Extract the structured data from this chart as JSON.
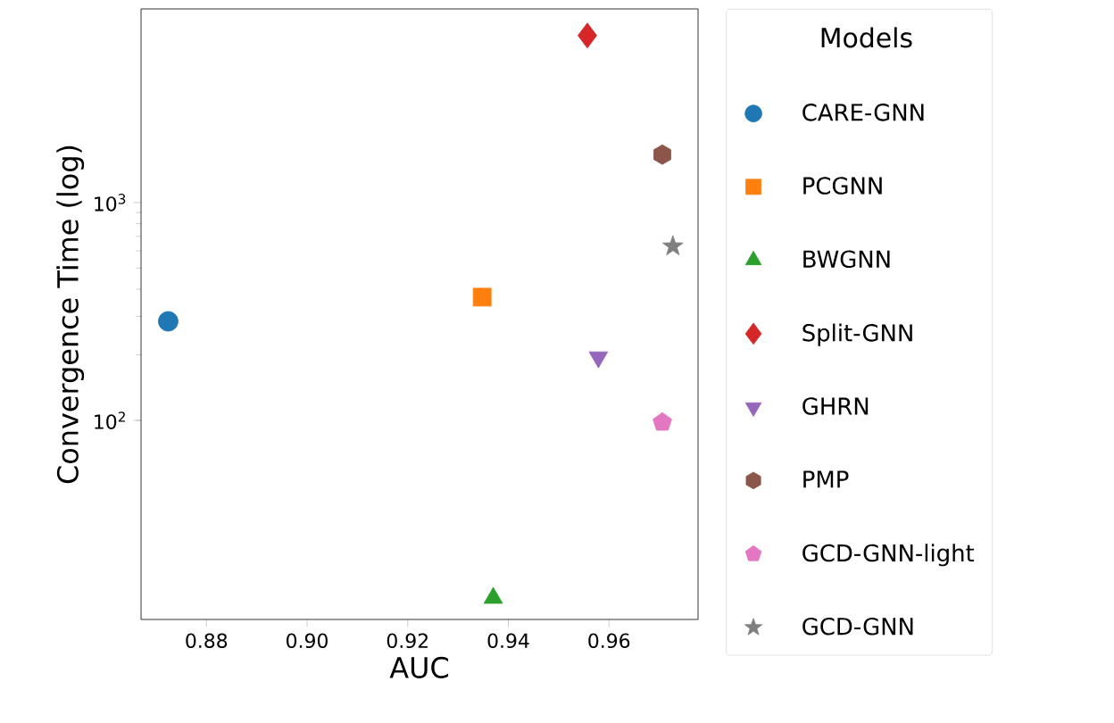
{
  "chart_data": {
    "type": "scatter",
    "xlabel": "AUC",
    "ylabel": "Convergence Time (log)",
    "legend_title": "Models",
    "legend": "right",
    "log": "y",
    "xlim": [
      0.867,
      0.9777
    ],
    "ylim": [
      12.2,
      7740
    ],
    "xticks": [
      {
        "value": 0.88,
        "label": "0.88"
      },
      {
        "value": 0.9,
        "label": "0.90"
      },
      {
        "value": 0.92,
        "label": "0.92"
      },
      {
        "value": 0.94,
        "label": "0.94"
      },
      {
        "value": 0.96,
        "label": "0.96"
      }
    ],
    "yticks": [
      {
        "value": 100,
        "label": "10$^{2}$"
      },
      {
        "value": 1000,
        "label": "10$^{3}$"
      }
    ],
    "series": [
      {
        "name": "CARE-GNN",
        "color": "#1f77b4",
        "marker": "circle",
        "x": [
          0.8724
        ],
        "values": [
          285
        ]
      },
      {
        "name": "PCGNN",
        "color": "#ff7f0e",
        "marker": "square",
        "x": [
          0.9348
        ],
        "values": [
          368
        ]
      },
      {
        "name": "BWGNN",
        "color": "#2ca02c",
        "marker": "triangle",
        "x": [
          0.937
        ],
        "values": [
          15.3
        ]
      },
      {
        "name": "Split-GNN",
        "color": "#d62728",
        "marker": "diamond",
        "x": [
          0.9557
        ],
        "values": [
          5840
        ]
      },
      {
        "name": "GHRN",
        "color": "#9467bd",
        "marker": "triangle-down",
        "x": [
          0.9579
        ],
        "values": [
          195
        ]
      },
      {
        "name": "PMP",
        "color": "#8c564b",
        "x": [
          0.9706
        ],
        "values": [
          1660
        ]
      },
      {
        "name": "GCD-GNN-light",
        "color": "#e377c2",
        "x": [
          0.9706
        ],
        "values": [
          98
        ]
      },
      {
        "name": "GCD-GNN",
        "color": "#7f7f7f",
        "marker": "star",
        "x": [
          0.9727
        ],
        "values": [
          630
        ]
      }
    ]
  }
}
